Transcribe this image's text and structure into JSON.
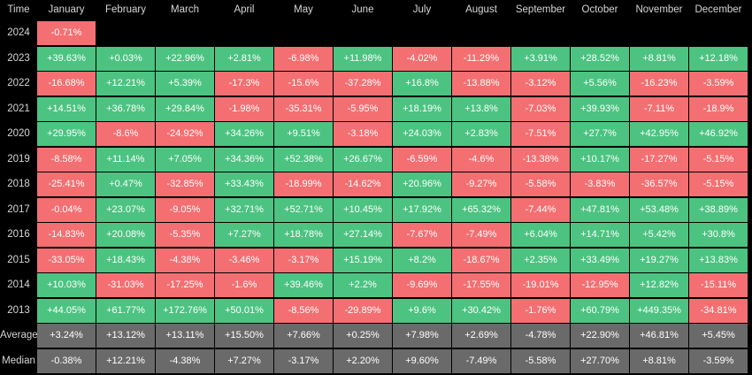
{
  "chart_data": {
    "type": "heatmap",
    "corner_label": "Time",
    "columns": [
      "January",
      "February",
      "March",
      "April",
      "May",
      "June",
      "July",
      "August",
      "September",
      "October",
      "November",
      "December"
    ],
    "rows": [
      {
        "label": "2024",
        "kind": "year",
        "values": [
          "-0.71%",
          null,
          null,
          null,
          null,
          null,
          null,
          null,
          null,
          null,
          null,
          null
        ]
      },
      {
        "label": "2023",
        "kind": "year",
        "values": [
          "+39.63%",
          "+0.03%",
          "+22.96%",
          "+2.81%",
          "-6.98%",
          "+11.98%",
          "-4.02%",
          "-11.29%",
          "+3.91%",
          "+28.52%",
          "+8.81%",
          "+12.18%"
        ]
      },
      {
        "label": "2022",
        "kind": "year",
        "values": [
          "-16.68%",
          "+12.21%",
          "+5.39%",
          "-17.3%",
          "-15.6%",
          "-37.28%",
          "+16.8%",
          "-13.88%",
          "-3.12%",
          "+5.56%",
          "-16.23%",
          "-3.59%"
        ]
      },
      {
        "label": "2021",
        "kind": "year",
        "values": [
          "+14.51%",
          "+36.78%",
          "+29.84%",
          "-1.98%",
          "-35.31%",
          "-5.95%",
          "+18.19%",
          "+13.8%",
          "-7.03%",
          "+39.93%",
          "-7.11%",
          "-18.9%"
        ]
      },
      {
        "label": "2020",
        "kind": "year",
        "values": [
          "+29.95%",
          "-8.6%",
          "-24.92%",
          "+34.26%",
          "+9.51%",
          "-3.18%",
          "+24.03%",
          "+2.83%",
          "-7.51%",
          "+27.7%",
          "+42.95%",
          "+46.92%"
        ]
      },
      {
        "label": "2019",
        "kind": "year",
        "values": [
          "-8.58%",
          "+11.14%",
          "+7.05%",
          "+34.36%",
          "+52.38%",
          "+26.67%",
          "-6.59%",
          "-4.6%",
          "-13.38%",
          "+10.17%",
          "-17.27%",
          "-5.15%"
        ]
      },
      {
        "label": "2018",
        "kind": "year",
        "values": [
          "-25.41%",
          "+0.47%",
          "-32.85%",
          "+33.43%",
          "-18.99%",
          "-14.62%",
          "+20.96%",
          "-9.27%",
          "-5.58%",
          "-3.83%",
          "-36.57%",
          "-5.15%"
        ]
      },
      {
        "label": "2017",
        "kind": "year",
        "values": [
          "-0.04%",
          "+23.07%",
          "-9.05%",
          "+32.71%",
          "+52.71%",
          "+10.45%",
          "+17.92%",
          "+65.32%",
          "-7.44%",
          "+47.81%",
          "+53.48%",
          "+38.89%"
        ]
      },
      {
        "label": "2016",
        "kind": "year",
        "values": [
          "-14.83%",
          "+20.08%",
          "-5.35%",
          "+7.27%",
          "+18.78%",
          "+27.14%",
          "-7.67%",
          "-7.49%",
          "+6.04%",
          "+14.71%",
          "+5.42%",
          "+30.8%"
        ]
      },
      {
        "label": "2015",
        "kind": "year",
        "values": [
          "-33.05%",
          "+18.43%",
          "-4.38%",
          "-3.46%",
          "-3.17%",
          "+15.19%",
          "+8.2%",
          "-18.67%",
          "+2.35%",
          "+33.49%",
          "+19.27%",
          "+13.83%"
        ]
      },
      {
        "label": "2014",
        "kind": "year",
        "values": [
          "+10.03%",
          "-31.03%",
          "-17.25%",
          "-1.6%",
          "+39.46%",
          "+2.2%",
          "-9.69%",
          "-17.55%",
          "-19.01%",
          "-12.95%",
          "+12.82%",
          "-15.11%"
        ]
      },
      {
        "label": "2013",
        "kind": "year",
        "values": [
          "+44.05%",
          "+61.77%",
          "+172.76%",
          "+50.01%",
          "-8.56%",
          "-29.89%",
          "+9.6%",
          "+30.42%",
          "-1.76%",
          "+60.79%",
          "+449.35%",
          "-34.81%"
        ]
      },
      {
        "label": "Average",
        "kind": "summary",
        "values": [
          "+3.24%",
          "+13.12%",
          "+13.11%",
          "+15.50%",
          "+7.66%",
          "+0.25%",
          "+7.98%",
          "+2.69%",
          "-4.78%",
          "+22.90%",
          "+46.81%",
          "+5.45%"
        ]
      },
      {
        "label": "Median",
        "kind": "summary",
        "values": [
          "-0.38%",
          "+12.21%",
          "-4.38%",
          "+7.27%",
          "-3.17%",
          "+2.20%",
          "+9.60%",
          "-7.49%",
          "-5.58%",
          "+27.70%",
          "+8.81%",
          "-3.59%"
        ]
      }
    ],
    "colors": {
      "positive": "#4cc381",
      "negative": "#f36f72",
      "summary": "#6a6a6a",
      "background": "#000000"
    }
  }
}
